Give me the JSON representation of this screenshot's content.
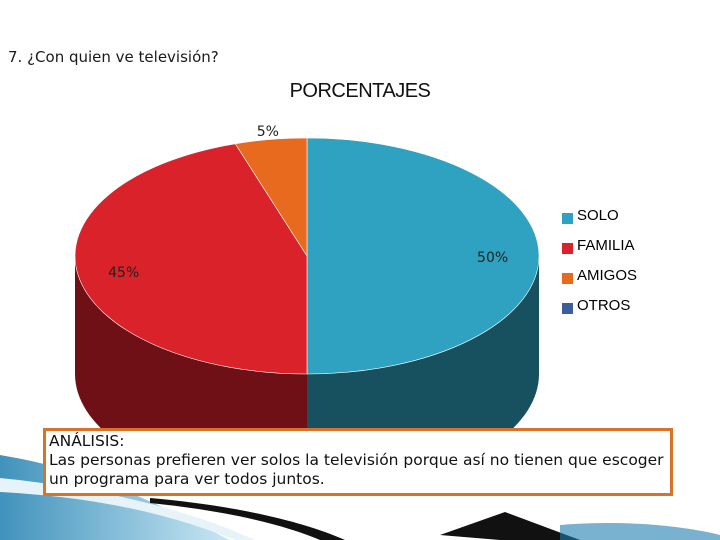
{
  "question": "7. ¿Con quien ve televisión?",
  "chart_data": {
    "type": "pie",
    "title": "PORCENTAJES",
    "categories": [
      "SOLO",
      "FAMILIA",
      "AMIGOS",
      "OTROS"
    ],
    "values": [
      50,
      45,
      5,
      0
    ],
    "labels": [
      "50%",
      "45%",
      "5%",
      ""
    ],
    "colors": [
      "#2ea2c0",
      "#d9222a",
      "#e86a1e",
      "#3a5f9a"
    ],
    "side_colors": [
      "#17505e",
      "#6e1015",
      "#7a3510",
      "#1d3050"
    ],
    "legend_position": "right"
  },
  "analysis": {
    "heading": "ANÁLISIS:",
    "text": "Las personas prefieren ver solos la televisión porque así no tienen que escoger un programa para ver todos juntos."
  }
}
